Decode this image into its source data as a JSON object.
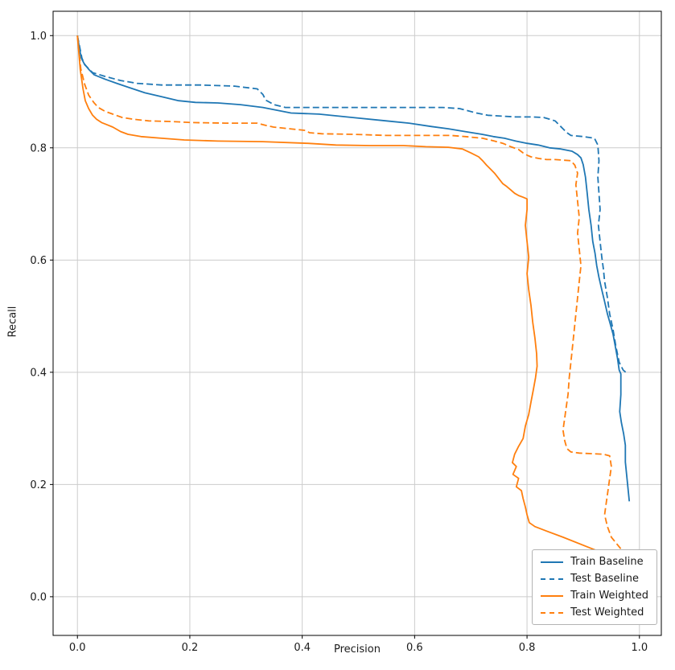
{
  "figure": {
    "kind": "matplotlib-style precision-recall plot",
    "background": "#ffffff"
  },
  "chart_data": {
    "type": "line",
    "title": "",
    "xlabel": "Precision",
    "ylabel": "Recall",
    "xlim": [
      0,
      1
    ],
    "ylim": [
      0,
      1
    ],
    "grid": true,
    "legend_position": "lower right",
    "xticks": [
      0.0,
      0.2,
      0.4,
      0.6,
      0.8,
      1.0
    ],
    "yticks": [
      0.0,
      0.2,
      0.4,
      0.6,
      0.8,
      1.0
    ],
    "xtick_labels": [
      "0.0",
      "0.2",
      "0.4",
      "0.6",
      "0.8",
      "1.0"
    ],
    "ytick_labels": [
      "0.0",
      "0.2",
      "0.4",
      "0.6",
      "0.8",
      "1.0"
    ],
    "series": [
      {
        "name": "Train Baseline",
        "color": "#1f77b4",
        "style": "solid",
        "points": [
          [
            0.0,
            1.0
          ],
          [
            0.004,
            0.975
          ],
          [
            0.007,
            0.96
          ],
          [
            0.012,
            0.95
          ],
          [
            0.02,
            0.94
          ],
          [
            0.03,
            0.93
          ],
          [
            0.05,
            0.922
          ],
          [
            0.07,
            0.915
          ],
          [
            0.09,
            0.908
          ],
          [
            0.12,
            0.898
          ],
          [
            0.15,
            0.891
          ],
          [
            0.18,
            0.884
          ],
          [
            0.21,
            0.881
          ],
          [
            0.25,
            0.88
          ],
          [
            0.29,
            0.877
          ],
          [
            0.33,
            0.872
          ],
          [
            0.36,
            0.866
          ],
          [
            0.38,
            0.862
          ],
          [
            0.43,
            0.86
          ],
          [
            0.49,
            0.854
          ],
          [
            0.55,
            0.848
          ],
          [
            0.59,
            0.844
          ],
          [
            0.63,
            0.838
          ],
          [
            0.66,
            0.834
          ],
          [
            0.69,
            0.829
          ],
          [
            0.72,
            0.824
          ],
          [
            0.74,
            0.82
          ],
          [
            0.76,
            0.817
          ],
          [
            0.78,
            0.812
          ],
          [
            0.8,
            0.808
          ],
          [
            0.82,
            0.805
          ],
          [
            0.84,
            0.8
          ],
          [
            0.86,
            0.798
          ],
          [
            0.88,
            0.794
          ],
          [
            0.89,
            0.788
          ],
          [
            0.896,
            0.782
          ],
          [
            0.9,
            0.77
          ],
          [
            0.904,
            0.748
          ],
          [
            0.907,
            0.72
          ],
          [
            0.91,
            0.69
          ],
          [
            0.914,
            0.662
          ],
          [
            0.917,
            0.633
          ],
          [
            0.921,
            0.612
          ],
          [
            0.924,
            0.59
          ],
          [
            0.928,
            0.569
          ],
          [
            0.933,
            0.547
          ],
          [
            0.938,
            0.526
          ],
          [
            0.943,
            0.504
          ],
          [
            0.947,
            0.49
          ],
          [
            0.953,
            0.468
          ],
          [
            0.957,
            0.447
          ],
          [
            0.961,
            0.425
          ],
          [
            0.964,
            0.404
          ],
          [
            0.967,
            0.397
          ],
          [
            0.967,
            0.36
          ],
          [
            0.965,
            0.33
          ],
          [
            0.968,
            0.31
          ],
          [
            0.972,
            0.29
          ],
          [
            0.975,
            0.27
          ],
          [
            0.975,
            0.24
          ],
          [
            0.978,
            0.21
          ],
          [
            0.98,
            0.19
          ],
          [
            0.982,
            0.17
          ]
        ]
      },
      {
        "name": "Test Baseline",
        "color": "#1f77b4",
        "style": "dashed",
        "points": [
          [
            0.0,
            1.0
          ],
          [
            0.008,
            0.96
          ],
          [
            0.013,
            0.948
          ],
          [
            0.027,
            0.934
          ],
          [
            0.05,
            0.927
          ],
          [
            0.077,
            0.92
          ],
          [
            0.106,
            0.915
          ],
          [
            0.15,
            0.912
          ],
          [
            0.22,
            0.912
          ],
          [
            0.28,
            0.91
          ],
          [
            0.32,
            0.905
          ],
          [
            0.33,
            0.895
          ],
          [
            0.335,
            0.885
          ],
          [
            0.35,
            0.877
          ],
          [
            0.37,
            0.872
          ],
          [
            0.43,
            0.872
          ],
          [
            0.5,
            0.872
          ],
          [
            0.58,
            0.872
          ],
          [
            0.65,
            0.872
          ],
          [
            0.68,
            0.87
          ],
          [
            0.71,
            0.862
          ],
          [
            0.73,
            0.858
          ],
          [
            0.78,
            0.855
          ],
          [
            0.81,
            0.855
          ],
          [
            0.83,
            0.854
          ],
          [
            0.85,
            0.848
          ],
          [
            0.857,
            0.841
          ],
          [
            0.864,
            0.834
          ],
          [
            0.871,
            0.827
          ],
          [
            0.878,
            0.822
          ],
          [
            0.9,
            0.82
          ],
          [
            0.92,
            0.817
          ],
          [
            0.926,
            0.805
          ],
          [
            0.928,
            0.777
          ],
          [
            0.926,
            0.748
          ],
          [
            0.928,
            0.719
          ],
          [
            0.93,
            0.69
          ],
          [
            0.927,
            0.662
          ],
          [
            0.93,
            0.633
          ],
          [
            0.933,
            0.605
          ],
          [
            0.936,
            0.583
          ],
          [
            0.938,
            0.562
          ],
          [
            0.943,
            0.533
          ],
          [
            0.947,
            0.504
          ],
          [
            0.953,
            0.476
          ],
          [
            0.958,
            0.447
          ],
          [
            0.964,
            0.418
          ],
          [
            0.971,
            0.404
          ],
          [
            0.978,
            0.398
          ]
        ]
      },
      {
        "name": "Train Weighted",
        "color": "#ff7f0e",
        "style": "solid",
        "points": [
          [
            0.0,
            1.0
          ],
          [
            0.005,
            0.94
          ],
          [
            0.01,
            0.905
          ],
          [
            0.014,
            0.884
          ],
          [
            0.02,
            0.87
          ],
          [
            0.027,
            0.858
          ],
          [
            0.034,
            0.851
          ],
          [
            0.043,
            0.845
          ],
          [
            0.053,
            0.841
          ],
          [
            0.063,
            0.837
          ],
          [
            0.077,
            0.829
          ],
          [
            0.09,
            0.824
          ],
          [
            0.113,
            0.82
          ],
          [
            0.15,
            0.817
          ],
          [
            0.19,
            0.814
          ],
          [
            0.25,
            0.812
          ],
          [
            0.33,
            0.811
          ],
          [
            0.41,
            0.808
          ],
          [
            0.46,
            0.805
          ],
          [
            0.52,
            0.804
          ],
          [
            0.58,
            0.804
          ],
          [
            0.62,
            0.802
          ],
          [
            0.66,
            0.801
          ],
          [
            0.685,
            0.798
          ],
          [
            0.7,
            0.791
          ],
          [
            0.714,
            0.784
          ],
          [
            0.721,
            0.777
          ],
          [
            0.728,
            0.769
          ],
          [
            0.735,
            0.762
          ],
          [
            0.742,
            0.755
          ],
          [
            0.75,
            0.745
          ],
          [
            0.757,
            0.736
          ],
          [
            0.764,
            0.731
          ],
          [
            0.771,
            0.725
          ],
          [
            0.778,
            0.719
          ],
          [
            0.785,
            0.715
          ],
          [
            0.793,
            0.712
          ],
          [
            0.8,
            0.709
          ],
          [
            0.8,
            0.69
          ],
          [
            0.797,
            0.662
          ],
          [
            0.8,
            0.633
          ],
          [
            0.803,
            0.605
          ],
          [
            0.8,
            0.576
          ],
          [
            0.803,
            0.547
          ],
          [
            0.807,
            0.519
          ],
          [
            0.81,
            0.49
          ],
          [
            0.814,
            0.461
          ],
          [
            0.817,
            0.433
          ],
          [
            0.818,
            0.411
          ],
          [
            0.815,
            0.39
          ],
          [
            0.811,
            0.368
          ],
          [
            0.807,
            0.347
          ],
          [
            0.803,
            0.325
          ],
          [
            0.797,
            0.304
          ],
          [
            0.793,
            0.282
          ],
          [
            0.785,
            0.268
          ],
          [
            0.778,
            0.254
          ],
          [
            0.774,
            0.239
          ],
          [
            0.781,
            0.232
          ],
          [
            0.775,
            0.218
          ],
          [
            0.785,
            0.211
          ],
          [
            0.781,
            0.196
          ],
          [
            0.79,
            0.189
          ],
          [
            0.793,
            0.175
          ],
          [
            0.797,
            0.16
          ],
          [
            0.8,
            0.146
          ],
          [
            0.804,
            0.132
          ],
          [
            0.814,
            0.125
          ],
          [
            0.835,
            0.117
          ],
          [
            0.864,
            0.106
          ],
          [
            0.907,
            0.089
          ],
          [
            0.95,
            0.072
          ],
          [
            0.995,
            0.048
          ]
        ]
      },
      {
        "name": "Test Weighted",
        "color": "#ff7f0e",
        "style": "dashed",
        "points": [
          [
            0.0,
            1.0
          ],
          [
            0.006,
            0.941
          ],
          [
            0.013,
            0.913
          ],
          [
            0.02,
            0.894
          ],
          [
            0.029,
            0.881
          ],
          [
            0.037,
            0.872
          ],
          [
            0.049,
            0.865
          ],
          [
            0.063,
            0.86
          ],
          [
            0.08,
            0.854
          ],
          [
            0.099,
            0.851
          ],
          [
            0.127,
            0.848
          ],
          [
            0.163,
            0.847
          ],
          [
            0.206,
            0.845
          ],
          [
            0.263,
            0.844
          ],
          [
            0.32,
            0.844
          ],
          [
            0.335,
            0.84
          ],
          [
            0.349,
            0.837
          ],
          [
            0.378,
            0.834
          ],
          [
            0.406,
            0.831
          ],
          [
            0.413,
            0.827
          ],
          [
            0.435,
            0.825
          ],
          [
            0.49,
            0.824
          ],
          [
            0.55,
            0.822
          ],
          [
            0.607,
            0.822
          ],
          [
            0.664,
            0.822
          ],
          [
            0.69,
            0.82
          ],
          [
            0.721,
            0.817
          ],
          [
            0.742,
            0.812
          ],
          [
            0.757,
            0.808
          ],
          [
            0.771,
            0.802
          ],
          [
            0.785,
            0.797
          ],
          [
            0.793,
            0.791
          ],
          [
            0.8,
            0.787
          ],
          [
            0.807,
            0.784
          ],
          [
            0.821,
            0.781
          ],
          [
            0.835,
            0.779
          ],
          [
            0.85,
            0.779
          ],
          [
            0.864,
            0.778
          ],
          [
            0.878,
            0.777
          ],
          [
            0.885,
            0.769
          ],
          [
            0.89,
            0.755
          ],
          [
            0.887,
            0.734
          ],
          [
            0.89,
            0.705
          ],
          [
            0.893,
            0.676
          ],
          [
            0.89,
            0.648
          ],
          [
            0.893,
            0.619
          ],
          [
            0.896,
            0.59
          ],
          [
            0.893,
            0.562
          ],
          [
            0.89,
            0.533
          ],
          [
            0.887,
            0.504
          ],
          [
            0.884,
            0.476
          ],
          [
            0.881,
            0.447
          ],
          [
            0.878,
            0.418
          ],
          [
            0.875,
            0.39
          ],
          [
            0.873,
            0.361
          ],
          [
            0.87,
            0.34
          ],
          [
            0.867,
            0.318
          ],
          [
            0.864,
            0.297
          ],
          [
            0.867,
            0.278
          ],
          [
            0.871,
            0.264
          ],
          [
            0.878,
            0.258
          ],
          [
            0.893,
            0.256
          ],
          [
            0.914,
            0.255
          ],
          [
            0.936,
            0.254
          ],
          [
            0.947,
            0.251
          ],
          [
            0.95,
            0.232
          ],
          [
            0.947,
            0.211
          ],
          [
            0.944,
            0.189
          ],
          [
            0.941,
            0.168
          ],
          [
            0.938,
            0.146
          ],
          [
            0.943,
            0.125
          ],
          [
            0.95,
            0.106
          ],
          [
            0.964,
            0.089
          ],
          [
            0.978,
            0.072
          ],
          [
            0.996,
            0.053
          ]
        ]
      }
    ]
  }
}
